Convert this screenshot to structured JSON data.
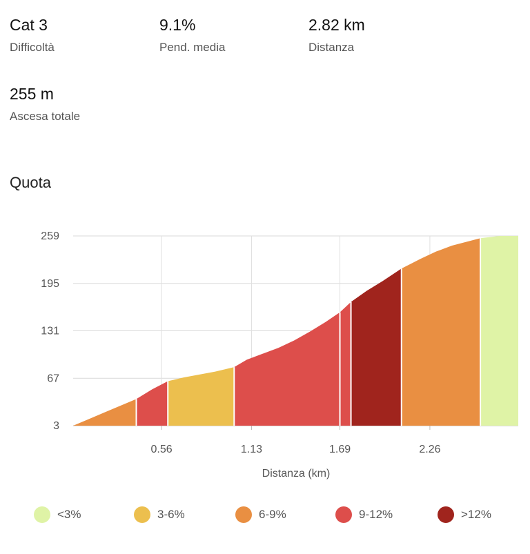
{
  "stats": [
    {
      "value": "Cat 3",
      "label": "Difficoltà"
    },
    {
      "value": "9.1%",
      "label": "Pend. media"
    },
    {
      "value": "2.82 km",
      "label": "Distanza"
    },
    {
      "value": "255 m",
      "label": "Ascesa totale"
    }
  ],
  "section_title": "Quota",
  "legend": [
    {
      "label": "<3%",
      "color": "#dff3a6"
    },
    {
      "label": "3-6%",
      "color": "#ecbf4e"
    },
    {
      "label": "6-9%",
      "color": "#e98f42"
    },
    {
      "label": "9-12%",
      "color": "#dd4e4b"
    },
    {
      "label": ">12%",
      "color": "#a0241d"
    }
  ],
  "chart_data": {
    "type": "area",
    "title": "Quota",
    "xlabel": "Distanza (km)",
    "ylabel": "",
    "xlim": [
      0,
      2.82
    ],
    "ylim": [
      3,
      259
    ],
    "x_ticks": [
      0.56,
      1.13,
      1.69,
      2.26
    ],
    "x_tick_labels": [
      "0.56",
      "1.13",
      "1.69",
      "2.26"
    ],
    "y_ticks": [
      3,
      67,
      131,
      195,
      259
    ],
    "y_tick_labels": [
      "3",
      "67",
      "131",
      "195",
      "259"
    ],
    "grid": true,
    "profile": [
      {
        "x": 0,
        "y": 3
      },
      {
        "x": 0.1,
        "y": 12
      },
      {
        "x": 0.2,
        "y": 21
      },
      {
        "x": 0.3,
        "y": 30
      },
      {
        "x": 0.4,
        "y": 39
      },
      {
        "x": 0.5,
        "y": 52
      },
      {
        "x": 0.6,
        "y": 63
      },
      {
        "x": 0.7,
        "y": 68
      },
      {
        "x": 0.8,
        "y": 72
      },
      {
        "x": 0.9,
        "y": 76
      },
      {
        "x": 1.02,
        "y": 82
      },
      {
        "x": 1.1,
        "y": 92
      },
      {
        "x": 1.2,
        "y": 100
      },
      {
        "x": 1.3,
        "y": 108
      },
      {
        "x": 1.4,
        "y": 118
      },
      {
        "x": 1.5,
        "y": 130
      },
      {
        "x": 1.6,
        "y": 143
      },
      {
        "x": 1.69,
        "y": 156
      },
      {
        "x": 1.76,
        "y": 170
      },
      {
        "x": 1.86,
        "y": 185
      },
      {
        "x": 1.96,
        "y": 198
      },
      {
        "x": 2.08,
        "y": 215
      },
      {
        "x": 2.2,
        "y": 228
      },
      {
        "x": 2.3,
        "y": 238
      },
      {
        "x": 2.4,
        "y": 246
      },
      {
        "x": 2.58,
        "y": 256
      },
      {
        "x": 2.7,
        "y": 259
      },
      {
        "x": 2.82,
        "y": 259
      }
    ],
    "segments": [
      {
        "x0": 0,
        "x1": 0.4,
        "grade": "6-9%",
        "color": "#e98f42"
      },
      {
        "x0": 0.4,
        "x1": 0.6,
        "grade": "9-12%",
        "color": "#dd4e4b"
      },
      {
        "x0": 0.6,
        "x1": 1.02,
        "grade": "3-6%",
        "color": "#ecbf4e"
      },
      {
        "x0": 1.02,
        "x1": 1.69,
        "grade": "9-12%",
        "color": "#dd4e4b"
      },
      {
        "x0": 1.69,
        "x1": 1.76,
        "grade": "9-12%",
        "color": "#dd4e4b"
      },
      {
        "x0": 1.76,
        "x1": 2.08,
        "grade": ">12%",
        "color": "#a0241d"
      },
      {
        "x0": 2.08,
        "x1": 2.58,
        "grade": "6-9%",
        "color": "#e98f42"
      },
      {
        "x0": 2.58,
        "x1": 2.82,
        "grade": "<3%",
        "color": "#dff3a6"
      }
    ]
  }
}
